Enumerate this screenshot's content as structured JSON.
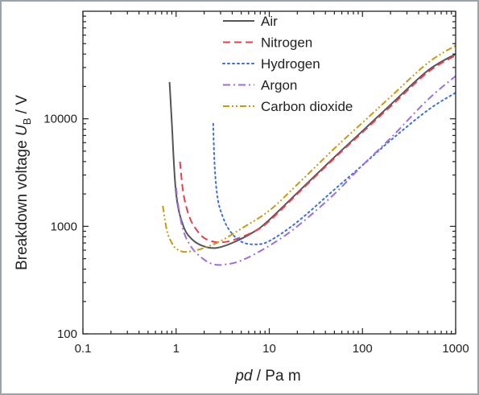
{
  "chart_data": {
    "type": "line",
    "title": "",
    "xlabel": {
      "var": "pd",
      "unit": " / Pa m"
    },
    "ylabel": {
      "text": "Breakdown voltage ",
      "var": "U",
      "sub": "B",
      "unit": " / V"
    },
    "xscale": "log",
    "yscale": "log",
    "xlim": [
      0.1,
      1000
    ],
    "ylim": [
      100,
      100000
    ],
    "xticks": [
      {
        "value": 0.1,
        "label": "0.1"
      },
      {
        "value": 1,
        "label": "1"
      },
      {
        "value": 10,
        "label": "10"
      },
      {
        "value": 100,
        "label": "100"
      },
      {
        "value": 1000,
        "label": "1000"
      }
    ],
    "yticks": [
      {
        "value": 100,
        "label": "100"
      },
      {
        "value": 1000,
        "label": "1000"
      },
      {
        "value": 10000,
        "label": "10000"
      }
    ],
    "grid": false,
    "legend_position": "top-center",
    "series": [
      {
        "name": "Air",
        "color": "#555555",
        "dash": "solid",
        "x": [
          0.85,
          0.9,
          1.0,
          1.2,
          1.5,
          2.0,
          2.7,
          4,
          7,
          10,
          20,
          50,
          100,
          200,
          500,
          1000
        ],
        "y": [
          22000,
          9000,
          2000,
          1000,
          750,
          650,
          630,
          700,
          900,
          1150,
          2050,
          4400,
          7700,
          13500,
          28000,
          40000
        ]
      },
      {
        "name": "Nitrogen",
        "color": "#e8404f",
        "dash": "dashed",
        "x": [
          1.1,
          1.2,
          1.4,
          1.7,
          2.0,
          2.5,
          3.0,
          4,
          7,
          10,
          20,
          50,
          100,
          200,
          500,
          1000
        ],
        "y": [
          4000,
          2000,
          1200,
          900,
          780,
          720,
          710,
          740,
          900,
          1120,
          2000,
          4300,
          7500,
          13000,
          27000,
          39000
        ]
      },
      {
        "name": "Hydrogen",
        "color": "#3a6fe0",
        "dash": "dotted",
        "x": [
          2.5,
          2.6,
          2.8,
          3.2,
          3.8,
          5,
          7,
          10,
          20,
          50,
          100,
          200,
          500,
          1000
        ],
        "y": [
          9000,
          3500,
          1800,
          1200,
          900,
          720,
          680,
          730,
          1100,
          2200,
          3700,
          6300,
          12000,
          17500
        ]
      },
      {
        "name": "Argon",
        "color": "#9b6ee6",
        "dash": "dashdot",
        "x": [
          1.0,
          1.05,
          1.2,
          1.5,
          2.0,
          2.5,
          3.2,
          5,
          10,
          20,
          50,
          100,
          200,
          500,
          1000
        ],
        "y": [
          2300,
          1600,
          900,
          620,
          490,
          445,
          440,
          480,
          660,
          1000,
          2000,
          3700,
          6600,
          15000,
          25000
        ]
      },
      {
        "name": "Carbon dioxide",
        "color": "#c89a10",
        "dash": "dashdotdot",
        "x": [
          0.72,
          0.8,
          0.9,
          1.0,
          1.2,
          1.5,
          2.0,
          3.0,
          5,
          10,
          20,
          50,
          100,
          200,
          500,
          1000
        ],
        "y": [
          1550,
          900,
          700,
          620,
          580,
          590,
          630,
          730,
          950,
          1400,
          2450,
          5300,
          9200,
          16000,
          33000,
          48000
        ]
      }
    ]
  }
}
